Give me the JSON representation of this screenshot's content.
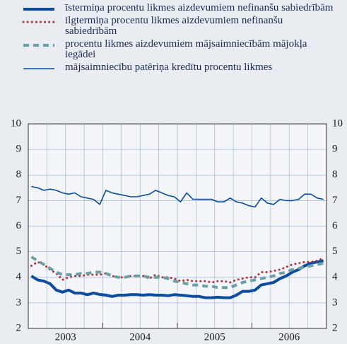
{
  "chart_data": {
    "type": "line",
    "categories": [
      "2003",
      null,
      null,
      null,
      null,
      null,
      null,
      null,
      null,
      null,
      null,
      null,
      "2004",
      null,
      null,
      null,
      null,
      null,
      null,
      null,
      null,
      null,
      null,
      null,
      "2005",
      null,
      null,
      null,
      null,
      null,
      null,
      null,
      null,
      null,
      null,
      null,
      "2006",
      null,
      null,
      null,
      null,
      null,
      null,
      null,
      null,
      null,
      null,
      null
    ],
    "series": [
      {
        "name": "īstermiņa procentu likmes aizdevumiem nefinanšu sabiedrībām",
        "color": "#0c4c9c",
        "style": "thick",
        "values": [
          4.05,
          3.9,
          3.85,
          3.75,
          3.5,
          3.42,
          3.5,
          3.38,
          3.38,
          3.32,
          3.38,
          3.33,
          3.3,
          3.25,
          3.3,
          3.3,
          3.32,
          3.32,
          3.3,
          3.32,
          3.3,
          3.3,
          3.28,
          3.32,
          3.3,
          3.28,
          3.25,
          3.25,
          3.2,
          3.2,
          3.22,
          3.2,
          3.2,
          3.3,
          3.45,
          3.45,
          3.5,
          3.7,
          3.75,
          3.8,
          3.95,
          4.05,
          4.2,
          4.3,
          4.45,
          4.55,
          4.6,
          4.65
        ]
      },
      {
        "name": "ilgtermiņa procentu likmes aizdevumiem nefinanšu sabiedrībām",
        "color": "#b2343a",
        "style": "dotted",
        "values": [
          4.45,
          4.6,
          4.5,
          4.3,
          4.15,
          3.9,
          4.0,
          4.05,
          4.05,
          4.1,
          4.1,
          4.1,
          4.15,
          4.05,
          4.0,
          4.0,
          4.05,
          4.05,
          4.05,
          3.95,
          4.1,
          4.0,
          4.0,
          3.95,
          3.85,
          3.9,
          3.85,
          3.85,
          3.85,
          3.8,
          3.85,
          3.85,
          3.8,
          3.9,
          3.95,
          4.0,
          4.0,
          4.2,
          4.2,
          4.25,
          4.3,
          4.4,
          4.5,
          4.55,
          4.6,
          4.6,
          4.65,
          4.75
        ]
      },
      {
        "name": "procentu likmes aizdevumiem mājsaimniecībām mājokļa iegādei",
        "color": "#6a9fa8",
        "style": "dashed",
        "values": [
          4.8,
          4.65,
          4.5,
          4.35,
          4.2,
          4.1,
          4.1,
          4.1,
          4.15,
          4.15,
          4.2,
          4.2,
          4.15,
          4.05,
          4.0,
          4.0,
          4.05,
          4.05,
          4.05,
          4.0,
          4.0,
          4.0,
          3.95,
          3.85,
          3.8,
          3.75,
          3.7,
          3.7,
          3.65,
          3.65,
          3.6,
          3.6,
          3.6,
          3.7,
          3.8,
          3.85,
          3.9,
          3.95,
          4.0,
          4.05,
          4.15,
          4.2,
          4.3,
          4.35,
          4.4,
          4.45,
          4.5,
          4.55
        ]
      },
      {
        "name": "mājsaimniecību patēriņa kredītu procentu likmes",
        "color": "#0c4c9c",
        "style": "thin",
        "values": [
          7.55,
          7.5,
          7.4,
          7.45,
          7.4,
          7.3,
          7.25,
          7.3,
          7.15,
          7.1,
          7.05,
          6.85,
          7.4,
          7.3,
          7.25,
          7.2,
          7.15,
          7.15,
          7.2,
          7.25,
          7.4,
          7.3,
          7.2,
          7.15,
          6.95,
          7.3,
          7.05,
          7.05,
          7.05,
          7.05,
          6.95,
          6.95,
          7.1,
          6.95,
          6.9,
          6.8,
          6.75,
          7.1,
          6.9,
          6.85,
          7.05,
          7.0,
          7.0,
          7.05,
          7.25,
          7.25,
          7.1,
          7.05
        ]
      }
    ],
    "ylim": [
      2,
      10
    ],
    "yticks": [
      2,
      3,
      4,
      5,
      6,
      7,
      8,
      9,
      10
    ],
    "grid": true,
    "right_axis": true
  }
}
